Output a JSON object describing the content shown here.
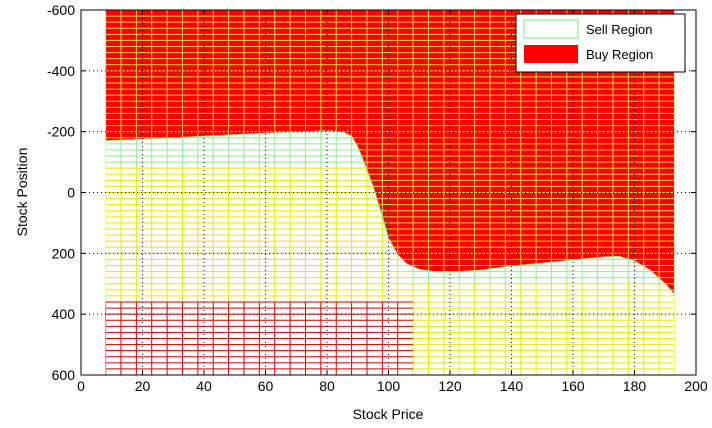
{
  "chart_data": {
    "type": "area",
    "xlabel": "Stock Price",
    "ylabel": "Stock Position",
    "xlim": [
      0,
      200
    ],
    "ylim": [
      -600,
      600
    ],
    "y_reversed": true,
    "x_ticks": [
      "0",
      "20",
      "40",
      "60",
      "80",
      "100",
      "120",
      "140",
      "160",
      "180",
      "200"
    ],
    "y_ticks": [
      "-600",
      "-400",
      "-200",
      "0",
      "200",
      "400",
      "600"
    ],
    "grid": "dotted",
    "legend_position": "top-right",
    "data_x_range": [
      8,
      193
    ],
    "series": [
      {
        "name": "Sell Region",
        "color": "#90ee90",
        "region": "below boundary",
        "mesh_colors": {
          "lower_left": "#cc0000",
          "middle": "#e8e800",
          "upper": "#90ee90"
        }
      },
      {
        "name": "Buy Region",
        "color": "#ff0000",
        "mesh_color": "#e8d84a",
        "region": "above boundary"
      }
    ],
    "boundary": {
      "x": [
        8,
        20,
        40,
        60,
        80,
        85,
        88,
        90,
        92,
        95,
        98,
        100,
        103,
        106,
        110,
        115,
        120,
        130,
        140,
        150,
        160,
        170,
        175,
        180,
        185,
        190,
        193
      ],
      "y": [
        -170,
        -175,
        -185,
        -195,
        -203,
        -200,
        -185,
        -150,
        -100,
        -20,
        80,
        150,
        205,
        235,
        253,
        260,
        262,
        255,
        242,
        232,
        222,
        212,
        210,
        225,
        255,
        300,
        335
      ]
    }
  }
}
